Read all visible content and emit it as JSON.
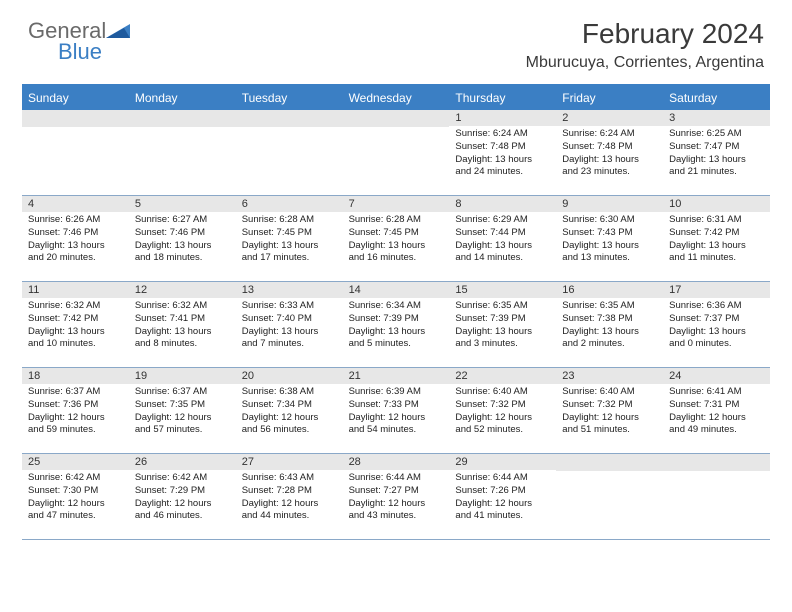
{
  "logo": {
    "general": "General",
    "blue": "Blue"
  },
  "header": {
    "month_title": "February 2024",
    "location": "Mburucuya, Corrientes, Argentina"
  },
  "colors": {
    "header_bar": "#3b7fc4",
    "daynum_bg": "#e7e7e7",
    "row_border": "#8aa8c8",
    "logo_gray": "#6a6a6a",
    "logo_blue": "#3b7fc4"
  },
  "weekdays": [
    "Sunday",
    "Monday",
    "Tuesday",
    "Wednesday",
    "Thursday",
    "Friday",
    "Saturday"
  ],
  "leading_blanks": 4,
  "days": [
    {
      "n": 1,
      "sunrise": "6:24 AM",
      "sunset": "7:48 PM",
      "daylight": "13 hours and 24 minutes."
    },
    {
      "n": 2,
      "sunrise": "6:24 AM",
      "sunset": "7:48 PM",
      "daylight": "13 hours and 23 minutes."
    },
    {
      "n": 3,
      "sunrise": "6:25 AM",
      "sunset": "7:47 PM",
      "daylight": "13 hours and 21 minutes."
    },
    {
      "n": 4,
      "sunrise": "6:26 AM",
      "sunset": "7:46 PM",
      "daylight": "13 hours and 20 minutes."
    },
    {
      "n": 5,
      "sunrise": "6:27 AM",
      "sunset": "7:46 PM",
      "daylight": "13 hours and 18 minutes."
    },
    {
      "n": 6,
      "sunrise": "6:28 AM",
      "sunset": "7:45 PM",
      "daylight": "13 hours and 17 minutes."
    },
    {
      "n": 7,
      "sunrise": "6:28 AM",
      "sunset": "7:45 PM",
      "daylight": "13 hours and 16 minutes."
    },
    {
      "n": 8,
      "sunrise": "6:29 AM",
      "sunset": "7:44 PM",
      "daylight": "13 hours and 14 minutes."
    },
    {
      "n": 9,
      "sunrise": "6:30 AM",
      "sunset": "7:43 PM",
      "daylight": "13 hours and 13 minutes."
    },
    {
      "n": 10,
      "sunrise": "6:31 AM",
      "sunset": "7:42 PM",
      "daylight": "13 hours and 11 minutes."
    },
    {
      "n": 11,
      "sunrise": "6:32 AM",
      "sunset": "7:42 PM",
      "daylight": "13 hours and 10 minutes."
    },
    {
      "n": 12,
      "sunrise": "6:32 AM",
      "sunset": "7:41 PM",
      "daylight": "13 hours and 8 minutes."
    },
    {
      "n": 13,
      "sunrise": "6:33 AM",
      "sunset": "7:40 PM",
      "daylight": "13 hours and 7 minutes."
    },
    {
      "n": 14,
      "sunrise": "6:34 AM",
      "sunset": "7:39 PM",
      "daylight": "13 hours and 5 minutes."
    },
    {
      "n": 15,
      "sunrise": "6:35 AM",
      "sunset": "7:39 PM",
      "daylight": "13 hours and 3 minutes."
    },
    {
      "n": 16,
      "sunrise": "6:35 AM",
      "sunset": "7:38 PM",
      "daylight": "13 hours and 2 minutes."
    },
    {
      "n": 17,
      "sunrise": "6:36 AM",
      "sunset": "7:37 PM",
      "daylight": "13 hours and 0 minutes."
    },
    {
      "n": 18,
      "sunrise": "6:37 AM",
      "sunset": "7:36 PM",
      "daylight": "12 hours and 59 minutes."
    },
    {
      "n": 19,
      "sunrise": "6:37 AM",
      "sunset": "7:35 PM",
      "daylight": "12 hours and 57 minutes."
    },
    {
      "n": 20,
      "sunrise": "6:38 AM",
      "sunset": "7:34 PM",
      "daylight": "12 hours and 56 minutes."
    },
    {
      "n": 21,
      "sunrise": "6:39 AM",
      "sunset": "7:33 PM",
      "daylight": "12 hours and 54 minutes."
    },
    {
      "n": 22,
      "sunrise": "6:40 AM",
      "sunset": "7:32 PM",
      "daylight": "12 hours and 52 minutes."
    },
    {
      "n": 23,
      "sunrise": "6:40 AM",
      "sunset": "7:32 PM",
      "daylight": "12 hours and 51 minutes."
    },
    {
      "n": 24,
      "sunrise": "6:41 AM",
      "sunset": "7:31 PM",
      "daylight": "12 hours and 49 minutes."
    },
    {
      "n": 25,
      "sunrise": "6:42 AM",
      "sunset": "7:30 PM",
      "daylight": "12 hours and 47 minutes."
    },
    {
      "n": 26,
      "sunrise": "6:42 AM",
      "sunset": "7:29 PM",
      "daylight": "12 hours and 46 minutes."
    },
    {
      "n": 27,
      "sunrise": "6:43 AM",
      "sunset": "7:28 PM",
      "daylight": "12 hours and 44 minutes."
    },
    {
      "n": 28,
      "sunrise": "6:44 AM",
      "sunset": "7:27 PM",
      "daylight": "12 hours and 43 minutes."
    },
    {
      "n": 29,
      "sunrise": "6:44 AM",
      "sunset": "7:26 PM",
      "daylight": "12 hours and 41 minutes."
    }
  ],
  "labels": {
    "sunrise": "Sunrise:",
    "sunset": "Sunset:",
    "daylight": "Daylight:"
  }
}
